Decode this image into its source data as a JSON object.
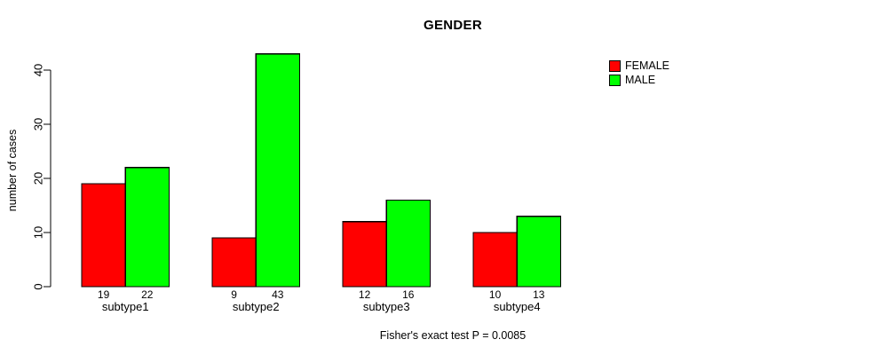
{
  "title": "GENDER",
  "ylabel": "number of cases",
  "footnote": "Fisher's exact test P = 0.0085",
  "legend": [
    {
      "label": "FEMALE",
      "color": "#ff0000"
    },
    {
      "label": "MALE",
      "color": "#00ff00"
    }
  ],
  "chart_data": {
    "type": "bar",
    "title": "GENDER",
    "categories": [
      "subtype1",
      "subtype2",
      "subtype3",
      "subtype4"
    ],
    "series": [
      {
        "name": "FEMALE",
        "color": "#ff0000",
        "values": [
          19,
          9,
          12,
          10
        ]
      },
      {
        "name": "MALE",
        "color": "#00ff00",
        "values": [
          22,
          43,
          16,
          13
        ]
      }
    ],
    "bar_value_labels": [
      [
        "19",
        "22"
      ],
      [
        "9",
        "43"
      ],
      [
        "12",
        "16"
      ],
      [
        "10",
        "13"
      ]
    ],
    "ylabel": "number of cases",
    "yticks": [
      0,
      10,
      20,
      30,
      40
    ],
    "ylim": [
      0,
      43
    ],
    "grid": false,
    "legend_position": "top-right",
    "annotation": "Fisher's exact test P = 0.0085",
    "bar_border_color": "#000000",
    "axis_color": "#000000"
  }
}
